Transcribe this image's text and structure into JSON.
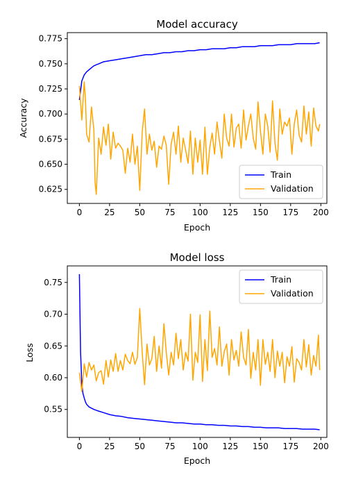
{
  "chart_data": [
    {
      "type": "line",
      "title": "Model accuracy",
      "xlabel": "Epoch",
      "ylabel": "Accuracy",
      "xlim": [
        -10,
        205
      ],
      "ylim": [
        0.611,
        0.781
      ],
      "xticks": [
        0,
        25,
        50,
        75,
        100,
        125,
        150,
        175,
        200
      ],
      "yticks": [
        0.625,
        0.65,
        0.675,
        0.7,
        0.725,
        0.75,
        0.775
      ],
      "ytick_labels": [
        "0.625",
        "0.650",
        "0.675",
        "0.700",
        "0.725",
        "0.750",
        "0.775"
      ],
      "legend_position": "lower-right",
      "grid": false,
      "series": [
        {
          "name": "Train",
          "color": "#0000ff",
          "x": [
            0,
            2,
            4,
            6,
            8,
            10,
            12,
            14,
            16,
            18,
            20,
            25,
            30,
            35,
            40,
            45,
            50,
            55,
            60,
            65,
            70,
            75,
            80,
            85,
            90,
            95,
            100,
            105,
            110,
            115,
            120,
            125,
            130,
            135,
            140,
            145,
            150,
            155,
            160,
            165,
            170,
            175,
            180,
            185,
            190,
            195,
            199
          ],
          "values": [
            0.714,
            0.733,
            0.739,
            0.742,
            0.744,
            0.746,
            0.748,
            0.749,
            0.75,
            0.751,
            0.752,
            0.753,
            0.754,
            0.755,
            0.756,
            0.757,
            0.758,
            0.759,
            0.759,
            0.76,
            0.761,
            0.761,
            0.762,
            0.762,
            0.763,
            0.763,
            0.764,
            0.764,
            0.765,
            0.765,
            0.765,
            0.766,
            0.766,
            0.767,
            0.767,
            0.767,
            0.768,
            0.768,
            0.768,
            0.769,
            0.769,
            0.769,
            0.77,
            0.77,
            0.77,
            0.77,
            0.771
          ]
        },
        {
          "name": "Validation",
          "color": "#ffa500",
          "x": [
            0,
            2,
            4,
            5,
            6,
            8,
            10,
            12,
            13,
            14,
            16,
            18,
            20,
            22,
            24,
            26,
            28,
            30,
            32,
            34,
            36,
            38,
            40,
            42,
            44,
            46,
            48,
            50,
            52,
            54,
            56,
            58,
            60,
            62,
            64,
            66,
            68,
            70,
            72,
            74,
            76,
            78,
            80,
            82,
            84,
            86,
            88,
            90,
            92,
            94,
            96,
            98,
            100,
            102,
            104,
            106,
            108,
            110,
            112,
            114,
            116,
            118,
            120,
            122,
            124,
            126,
            128,
            130,
            132,
            134,
            136,
            138,
            140,
            142,
            144,
            146,
            148,
            150,
            152,
            154,
            156,
            158,
            160,
            162,
            164,
            166,
            168,
            170,
            172,
            174,
            176,
            178,
            180,
            182,
            184,
            186,
            188,
            190,
            192,
            194,
            196,
            198,
            199
          ],
          "values": [
            0.728,
            0.694,
            0.732,
            0.715,
            0.68,
            0.672,
            0.707,
            0.684,
            0.632,
            0.62,
            0.676,
            0.66,
            0.687,
            0.669,
            0.69,
            0.655,
            0.682,
            0.666,
            0.671,
            0.668,
            0.664,
            0.641,
            0.666,
            0.652,
            0.68,
            0.65,
            0.668,
            0.624,
            0.682,
            0.705,
            0.66,
            0.68,
            0.664,
            0.673,
            0.647,
            0.668,
            0.665,
            0.678,
            0.669,
            0.63,
            0.67,
            0.682,
            0.66,
            0.688,
            0.652,
            0.676,
            0.664,
            0.651,
            0.683,
            0.64,
            0.676,
            0.652,
            0.674,
            0.64,
            0.687,
            0.64,
            0.667,
            0.681,
            0.66,
            0.692,
            0.673,
            0.656,
            0.7,
            0.676,
            0.668,
            0.7,
            0.667,
            0.686,
            0.69,
            0.666,
            0.704,
            0.674,
            0.688,
            0.7,
            0.676,
            0.665,
            0.712,
            0.683,
            0.66,
            0.7,
            0.688,
            0.662,
            0.713,
            0.671,
            0.654,
            0.705,
            0.68,
            0.692,
            0.688,
            0.696,
            0.66,
            0.69,
            0.704,
            0.679,
            0.672,
            0.708,
            0.68,
            0.702,
            0.668,
            0.706,
            0.688,
            0.683,
            0.69
          ]
        }
      ]
    },
    {
      "type": "line",
      "title": "Model loss",
      "xlabel": "Epoch",
      "ylabel": "Loss",
      "xlim": [
        -10,
        205
      ],
      "ylim": [
        0.506,
        0.776
      ],
      "xticks": [
        0,
        25,
        50,
        75,
        100,
        125,
        150,
        175,
        200
      ],
      "yticks": [
        0.55,
        0.6,
        0.65,
        0.7,
        0.75
      ],
      "ytick_labels": [
        "0.55",
        "0.60",
        "0.65",
        "0.70",
        "0.75"
      ],
      "legend_position": "upper-right",
      "grid": false,
      "series": [
        {
          "name": "Train",
          "color": "#0000ff",
          "x": [
            0,
            1,
            2,
            3,
            4,
            5,
            6,
            8,
            10,
            12,
            15,
            20,
            25,
            30,
            35,
            40,
            45,
            50,
            55,
            60,
            65,
            70,
            75,
            80,
            85,
            90,
            95,
            100,
            105,
            110,
            115,
            120,
            125,
            130,
            135,
            140,
            145,
            150,
            155,
            160,
            165,
            170,
            175,
            180,
            185,
            190,
            195,
            199
          ],
          "values": [
            0.763,
            0.64,
            0.59,
            0.575,
            0.568,
            0.562,
            0.558,
            0.554,
            0.552,
            0.55,
            0.548,
            0.545,
            0.542,
            0.54,
            0.539,
            0.537,
            0.536,
            0.535,
            0.534,
            0.533,
            0.532,
            0.531,
            0.53,
            0.529,
            0.529,
            0.528,
            0.527,
            0.527,
            0.526,
            0.526,
            0.525,
            0.525,
            0.524,
            0.524,
            0.523,
            0.523,
            0.522,
            0.522,
            0.521,
            0.521,
            0.521,
            0.52,
            0.52,
            0.52,
            0.519,
            0.519,
            0.519,
            0.518
          ]
        },
        {
          "name": "Validation",
          "color": "#ffa500",
          "x": [
            0,
            2,
            4,
            6,
            8,
            10,
            12,
            14,
            16,
            18,
            20,
            22,
            24,
            26,
            28,
            30,
            32,
            34,
            36,
            38,
            40,
            42,
            44,
            46,
            48,
            50,
            52,
            54,
            56,
            58,
            60,
            62,
            64,
            66,
            68,
            70,
            72,
            74,
            76,
            78,
            80,
            82,
            84,
            86,
            88,
            90,
            92,
            94,
            96,
            98,
            100,
            102,
            104,
            106,
            108,
            110,
            112,
            114,
            116,
            118,
            120,
            122,
            124,
            126,
            128,
            130,
            132,
            134,
            136,
            138,
            140,
            142,
            144,
            146,
            148,
            150,
            152,
            154,
            156,
            158,
            160,
            162,
            164,
            166,
            168,
            170,
            172,
            174,
            176,
            178,
            180,
            182,
            184,
            186,
            188,
            190,
            192,
            194,
            196,
            198,
            199
          ],
          "values": [
            0.608,
            0.578,
            0.622,
            0.601,
            0.624,
            0.612,
            0.62,
            0.595,
            0.608,
            0.611,
            0.59,
            0.627,
            0.601,
            0.628,
            0.61,
            0.638,
            0.61,
            0.627,
            0.612,
            0.637,
            0.627,
            0.622,
            0.64,
            0.621,
            0.632,
            0.709,
            0.64,
            0.589,
            0.653,
            0.62,
            0.63,
            0.665,
            0.61,
            0.65,
            0.615,
            0.685,
            0.64,
            0.604,
            0.64,
            0.62,
            0.67,
            0.63,
            0.66,
            0.612,
            0.64,
            0.626,
            0.7,
            0.596,
            0.64,
            0.624,
            0.699,
            0.594,
            0.66,
            0.611,
            0.705,
            0.632,
            0.646,
            0.62,
            0.68,
            0.618,
            0.641,
            0.653,
            0.604,
            0.66,
            0.628,
            0.643,
            0.618,
            0.672,
            0.632,
            0.62,
            0.676,
            0.599,
            0.64,
            0.612,
            0.66,
            0.588,
            0.66,
            0.621,
            0.64,
            0.61,
            0.66,
            0.6,
            0.642,
            0.618,
            0.64,
            0.592,
            0.633,
            0.618,
            0.649,
            0.593,
            0.63,
            0.624,
            0.612,
            0.66,
            0.617,
            0.652,
            0.604,
            0.635,
            0.618,
            0.667,
            0.612
          ]
        }
      ]
    }
  ]
}
